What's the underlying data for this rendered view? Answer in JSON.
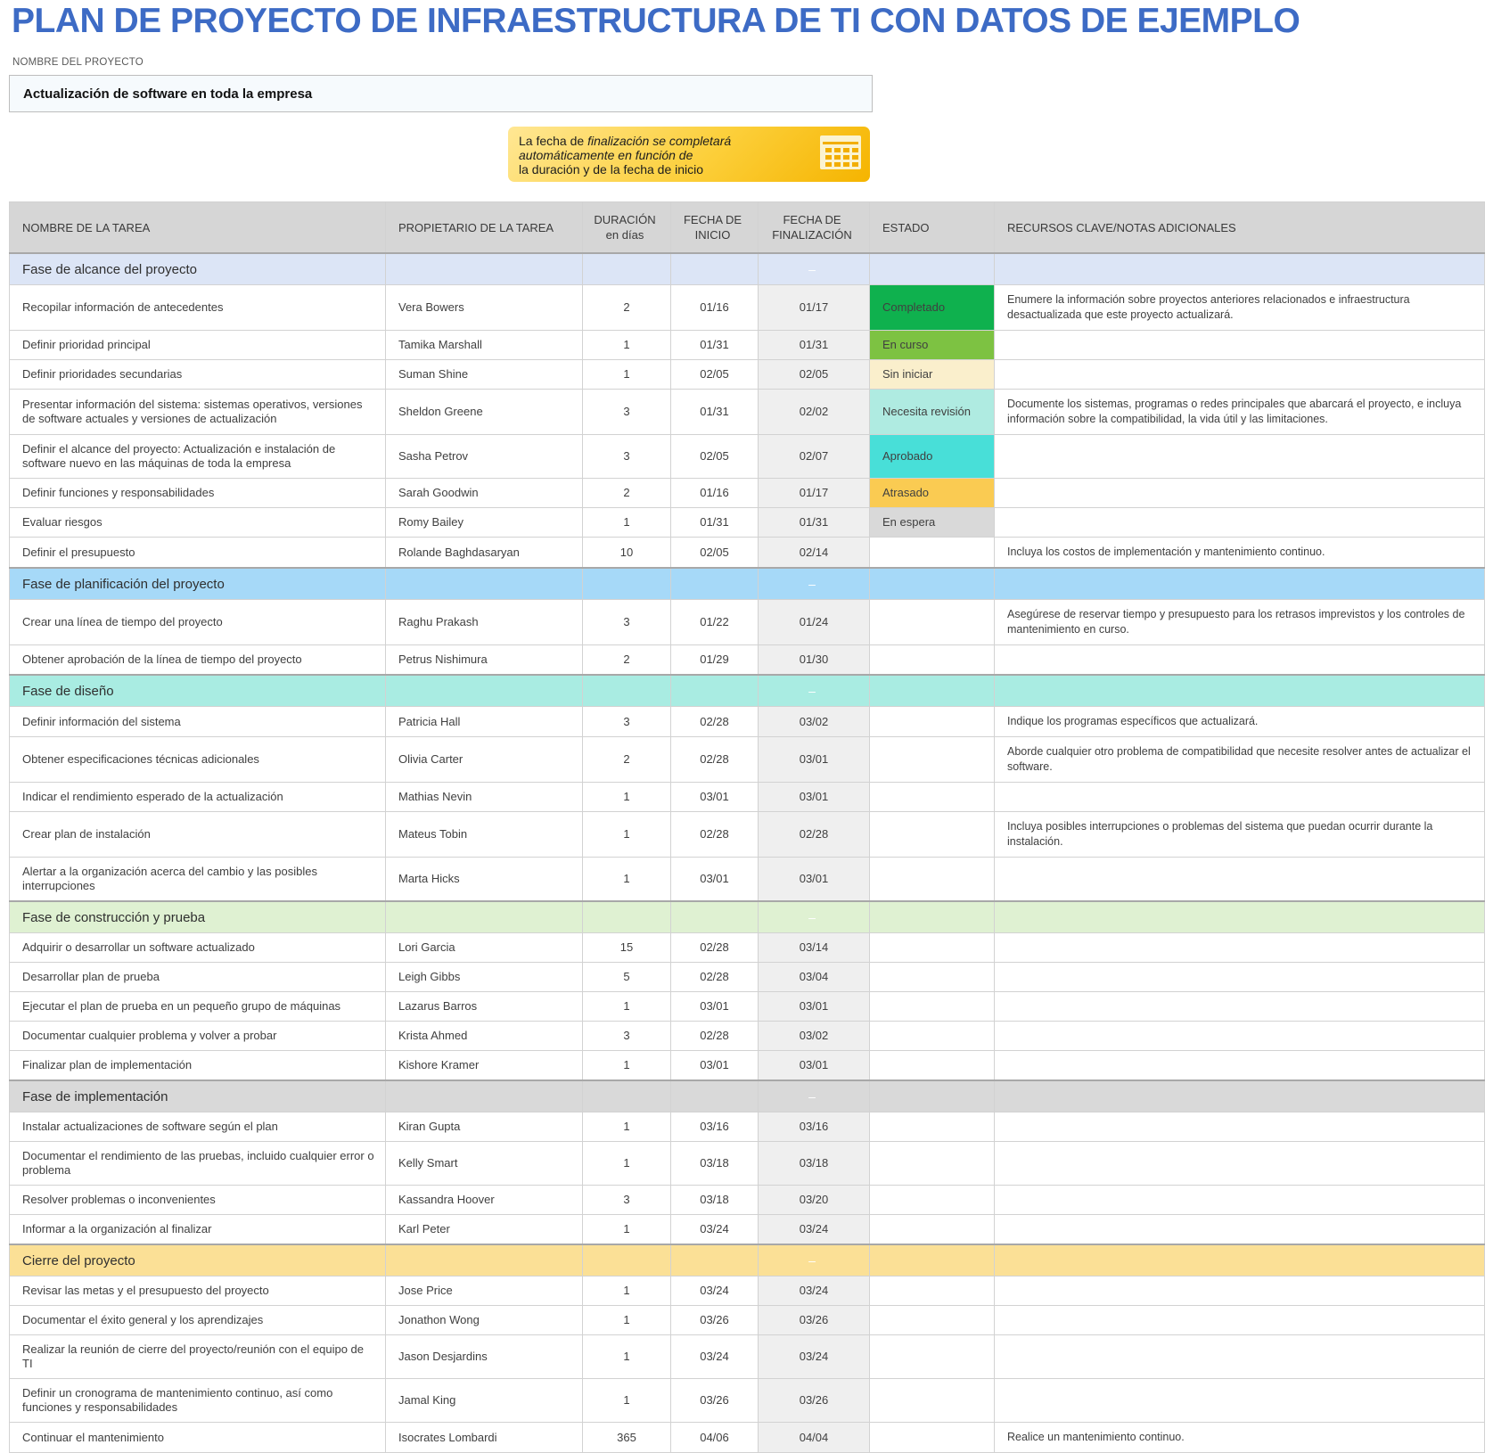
{
  "header": {
    "title": "PLAN DE PROYECTO DE INFRAESTRUCTURA DE TI CON DATOS DE EJEMPLO",
    "project_label": "NOMBRE DEL PROYECTO",
    "project_name": "Actualización de software en toda la empresa"
  },
  "callout": {
    "icon": "calendar-icon",
    "lines": [
      {
        "plain": "La fecha de ",
        "italic": "finalización se completará"
      },
      {
        "plain": "",
        "italic": "automáticamente en función de"
      },
      {
        "plain": "la duración y de la fecha de inicio",
        "italic": ""
      }
    ]
  },
  "colors": {
    "title_blue": "#3d6bc5",
    "callout_gold": "#f5b400",
    "header_gray": "#d6d6d6",
    "end_date_column": "#efefef"
  },
  "table": {
    "columns": [
      {
        "label": "NOMBRE DE LA TAREA",
        "sublabel": "",
        "align": "left"
      },
      {
        "label": "PROPIETARIO DE LA TAREA",
        "sublabel": "",
        "align": "left"
      },
      {
        "label": "DURACIÓN",
        "sublabel": "en días",
        "align": "center"
      },
      {
        "label": "FECHA DE",
        "sublabel": "INICIO",
        "align": "center"
      },
      {
        "label": "FECHA DE",
        "sublabel": "FINALIZACIÓN",
        "align": "center"
      },
      {
        "label": "ESTADO",
        "sublabel": "",
        "align": "left"
      },
      {
        "label": "RECURSOS CLAVE/NOTAS ADICIONALES",
        "sublabel": "",
        "align": "left"
      }
    ],
    "section_dash": "–",
    "status_colors": {
      "Completado": "#0fb14e",
      "En curso": "#7dc242",
      "Sin iniciar": "#faefcc",
      "Necesita revisión": "#afebe1",
      "Aprobado": "#48dfd8",
      "Atrasado": "#facb52",
      "En espera": "#d9d9d9"
    },
    "sections": [
      {
        "name": "Fase de alcance del proyecto",
        "color": "#dce5f6",
        "tasks": [
          {
            "task": "Recopilar información de antecedentes",
            "owner": "Vera Bowers",
            "duration": "2",
            "start": "01/16",
            "end": "01/17",
            "status": "Completado",
            "notes": "Enumere la información sobre proyectos anteriores relacionados e infraestructura desactualizada que este proyecto actualizará."
          },
          {
            "task": "Definir prioridad principal",
            "owner": "Tamika Marshall",
            "duration": "1",
            "start": "01/31",
            "end": "01/31",
            "status": "En curso",
            "notes": ""
          },
          {
            "task": "Definir prioridades secundarias",
            "owner": "Suman Shine",
            "duration": "1",
            "start": "02/05",
            "end": "02/05",
            "status": "Sin iniciar",
            "notes": ""
          },
          {
            "task": "Presentar información del sistema: sistemas operativos, versiones de software actuales y versiones de actualización",
            "owner": "Sheldon Greene",
            "duration": "3",
            "start": "01/31",
            "end": "02/02",
            "status": "Necesita revisión",
            "notes": "Documente los sistemas, programas o redes principales que abarcará el proyecto, e incluya información sobre la compatibilidad, la vida útil y las limitaciones."
          },
          {
            "task": "Definir el alcance del proyecto: Actualización e instalación de software nuevo en las máquinas de toda la empresa",
            "owner": "Sasha Petrov",
            "duration": "3",
            "start": "02/05",
            "end": "02/07",
            "status": "Aprobado",
            "notes": ""
          },
          {
            "task": "Definir funciones y responsabilidades",
            "owner": "Sarah Goodwin",
            "duration": "2",
            "start": "01/16",
            "end": "01/17",
            "status": "Atrasado",
            "notes": ""
          },
          {
            "task": "Evaluar riesgos",
            "owner": "Romy Bailey",
            "duration": "1",
            "start": "01/31",
            "end": "01/31",
            "status": "En espera",
            "notes": ""
          },
          {
            "task": "Definir el presupuesto",
            "owner": "Rolande Baghdasaryan",
            "duration": "10",
            "start": "02/05",
            "end": "02/14",
            "status": "",
            "notes": "Incluya los costos de implementación y mantenimiento continuo."
          }
        ]
      },
      {
        "name": "Fase de planificación del proyecto",
        "color": "#a6d9f8",
        "tasks": [
          {
            "task": "Crear una línea de tiempo del proyecto",
            "owner": "Raghu Prakash",
            "duration": "3",
            "start": "01/22",
            "end": "01/24",
            "status": "",
            "notes": "Asegúrese de reservar tiempo y presupuesto para los retrasos imprevistos y los controles de mantenimiento en curso."
          },
          {
            "task": "Obtener aprobación de la línea de tiempo del proyecto",
            "owner": "Petrus Nishimura",
            "duration": "2",
            "start": "01/29",
            "end": "01/30",
            "status": "",
            "notes": ""
          }
        ]
      },
      {
        "name": "Fase de diseño",
        "color": "#a9ece2",
        "tasks": [
          {
            "task": "Definir información del sistema",
            "owner": "Patricia Hall",
            "duration": "3",
            "start": "02/28",
            "end": "03/02",
            "status": "",
            "notes": "Indique los programas específicos que actualizará."
          },
          {
            "task": "Obtener especificaciones técnicas adicionales",
            "owner": "Olivia Carter",
            "duration": "2",
            "start": "02/28",
            "end": "03/01",
            "status": "",
            "notes": "Aborde cualquier otro problema de compatibilidad que necesite resolver antes de actualizar el software."
          },
          {
            "task": "Indicar el rendimiento esperado de la actualización",
            "owner": "Mathias Nevin",
            "duration": "1",
            "start": "03/01",
            "end": "03/01",
            "status": "",
            "notes": ""
          },
          {
            "task": "Crear plan de instalación",
            "owner": "Mateus Tobin",
            "duration": "1",
            "start": "02/28",
            "end": "02/28",
            "status": "",
            "notes": "Incluya posibles interrupciones o problemas del sistema que puedan ocurrir durante la instalación."
          },
          {
            "task": "Alertar a la organización acerca del cambio y las posibles interrupciones",
            "owner": "Marta Hicks",
            "duration": "1",
            "start": "03/01",
            "end": "03/01",
            "status": "",
            "notes": ""
          }
        ]
      },
      {
        "name": "Fase de construcción y prueba",
        "color": "#dff1d2",
        "tasks": [
          {
            "task": "Adquirir o desarrollar un software actualizado",
            "owner": "Lori Garcia",
            "duration": "15",
            "start": "02/28",
            "end": "03/14",
            "status": "",
            "notes": ""
          },
          {
            "task": "Desarrollar plan de prueba",
            "owner": "Leigh Gibbs",
            "duration": "5",
            "start": "02/28",
            "end": "03/04",
            "status": "",
            "notes": ""
          },
          {
            "task": "Ejecutar el plan de prueba en un pequeño grupo de máquinas",
            "owner": "Lazarus Barros",
            "duration": "1",
            "start": "03/01",
            "end": "03/01",
            "status": "",
            "notes": ""
          },
          {
            "task": "Documentar cualquier problema y volver a probar",
            "owner": "Krista Ahmed",
            "duration": "3",
            "start": "02/28",
            "end": "03/02",
            "status": "",
            "notes": ""
          },
          {
            "task": "Finalizar plan de implementación",
            "owner": "Kishore Kramer",
            "duration": "1",
            "start": "03/01",
            "end": "03/01",
            "status": "",
            "notes": ""
          }
        ]
      },
      {
        "name": "Fase de implementación",
        "color": "#d9d9d9",
        "tasks": [
          {
            "task": "Instalar actualizaciones de software según el plan",
            "owner": "Kiran Gupta",
            "duration": "1",
            "start": "03/16",
            "end": "03/16",
            "status": "",
            "notes": ""
          },
          {
            "task": "Documentar el rendimiento de las pruebas, incluido cualquier error o problema",
            "owner": "Kelly Smart",
            "duration": "1",
            "start": "03/18",
            "end": "03/18",
            "status": "",
            "notes": ""
          },
          {
            "task": "Resolver problemas o inconvenientes",
            "owner": "Kassandra Hoover",
            "duration": "3",
            "start": "03/18",
            "end": "03/20",
            "status": "",
            "notes": ""
          },
          {
            "task": "Informar a la organización al finalizar",
            "owner": "Karl Peter",
            "duration": "1",
            "start": "03/24",
            "end": "03/24",
            "status": "",
            "notes": ""
          }
        ]
      },
      {
        "name": "Cierre del proyecto",
        "color": "#fbe096",
        "tasks": [
          {
            "task": "Revisar las metas y el presupuesto del proyecto",
            "owner": "Jose Price",
            "duration": "1",
            "start": "03/24",
            "end": "03/24",
            "status": "",
            "notes": ""
          },
          {
            "task": "Documentar el éxito general y los aprendizajes",
            "owner": "Jonathon Wong",
            "duration": "1",
            "start": "03/26",
            "end": "03/26",
            "status": "",
            "notes": ""
          },
          {
            "task": "Realizar la reunión de cierre del proyecto/reunión con el equipo de TI",
            "owner": "Jason Desjardins",
            "duration": "1",
            "start": "03/24",
            "end": "03/24",
            "status": "",
            "notes": ""
          },
          {
            "task": "Definir un cronograma de mantenimiento continuo, así como funciones y responsabilidades",
            "owner": "Jamal King",
            "duration": "1",
            "start": "03/26",
            "end": "03/26",
            "status": "",
            "notes": ""
          },
          {
            "task": "Continuar el mantenimiento",
            "owner": "Isocrates Lombardi",
            "duration": "365",
            "start": "04/06",
            "end": "04/04",
            "status": "",
            "notes": "Realice un mantenimiento continuo."
          }
        ]
      }
    ]
  }
}
